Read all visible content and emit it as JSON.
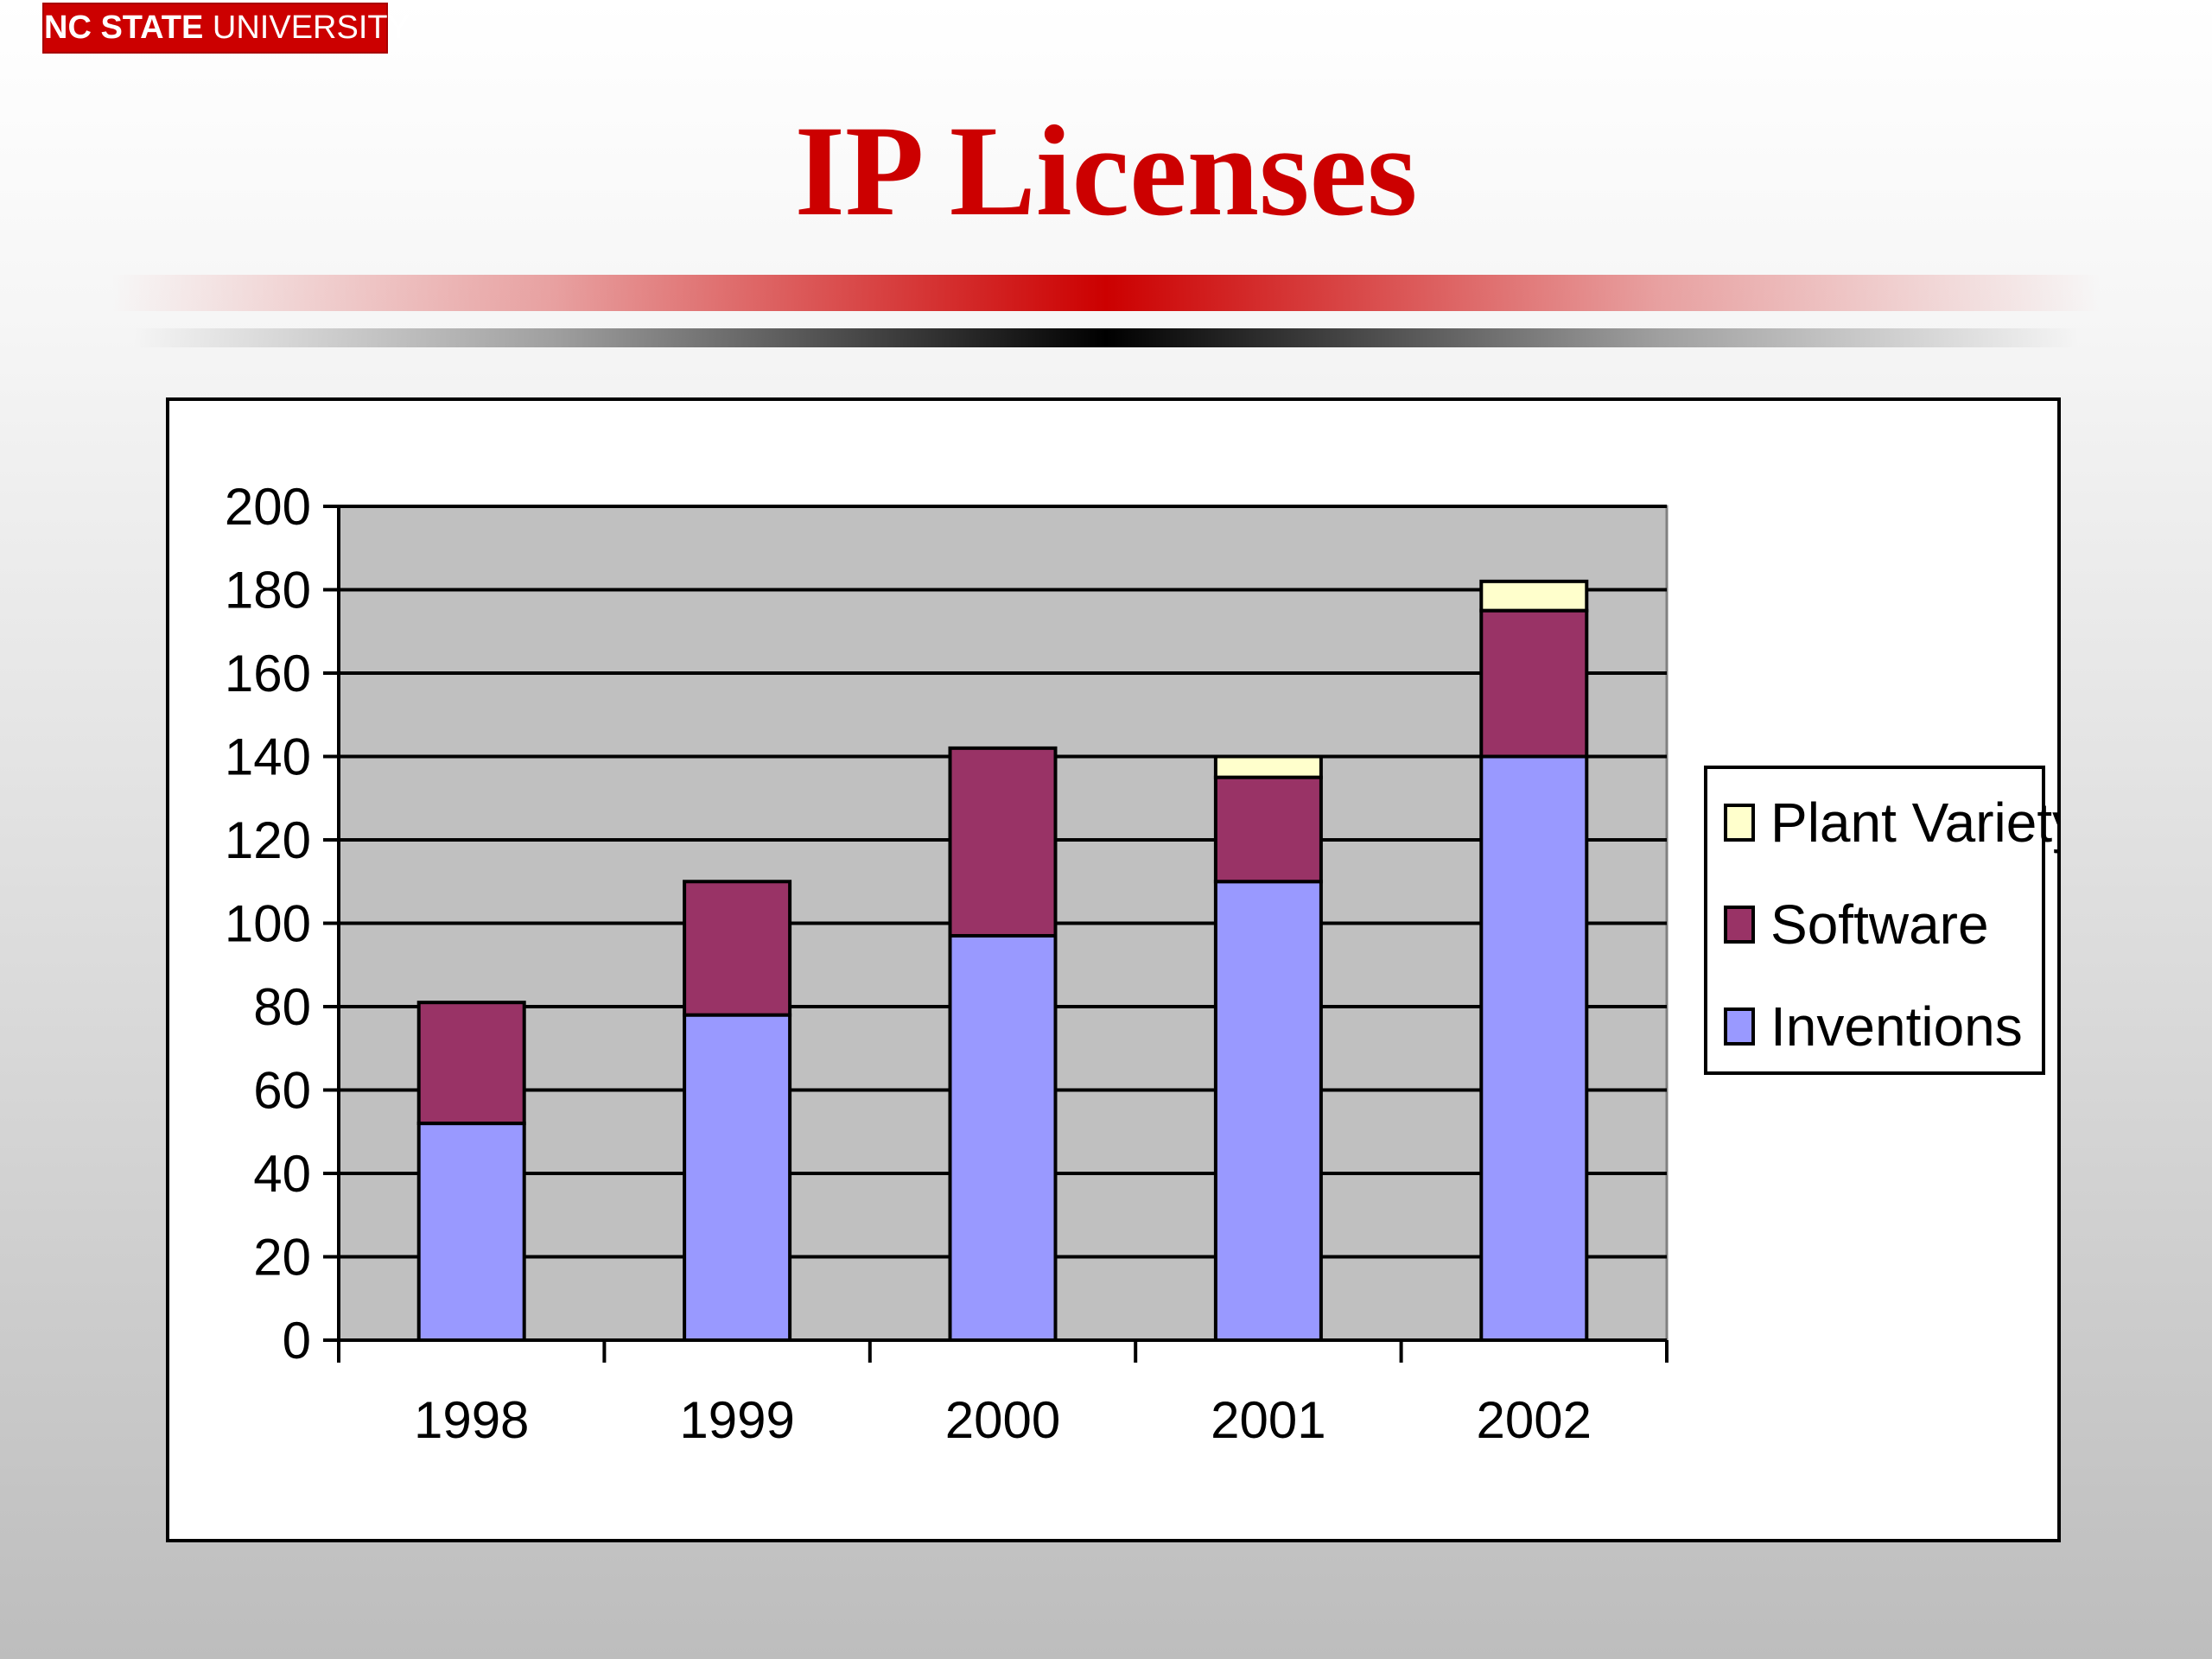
{
  "slide": {
    "logo_bold": "NC STATE",
    "logo_rest": "UNIVERSITY",
    "title": "IP Licenses"
  },
  "colors": {
    "brand_red": "#cc0000",
    "plot_bg": "#c0c0c0",
    "inventions": "#9999ff",
    "software": "#993366",
    "plant_variety": "#ffffcc"
  },
  "chart_data": {
    "type": "bar",
    "stacked": true,
    "title": "",
    "xlabel": "",
    "ylabel": "",
    "categories": [
      "1998",
      "1999",
      "2000",
      "2001",
      "2002"
    ],
    "series": [
      {
        "name": "Inventions",
        "values": [
          52,
          78,
          97,
          110,
          140
        ]
      },
      {
        "name": "Software",
        "values": [
          29,
          32,
          45,
          25,
          35
        ]
      },
      {
        "name": "Plant Variety",
        "values": [
          0,
          0,
          0,
          5,
          7
        ]
      }
    ],
    "ylim": [
      0,
      200
    ],
    "yticks": [
      0,
      20,
      40,
      60,
      80,
      100,
      120,
      140,
      160,
      180,
      200
    ],
    "grid": true,
    "legend_position": "right",
    "legend_order": [
      "Plant Variety",
      "Software",
      "Inventions"
    ]
  }
}
